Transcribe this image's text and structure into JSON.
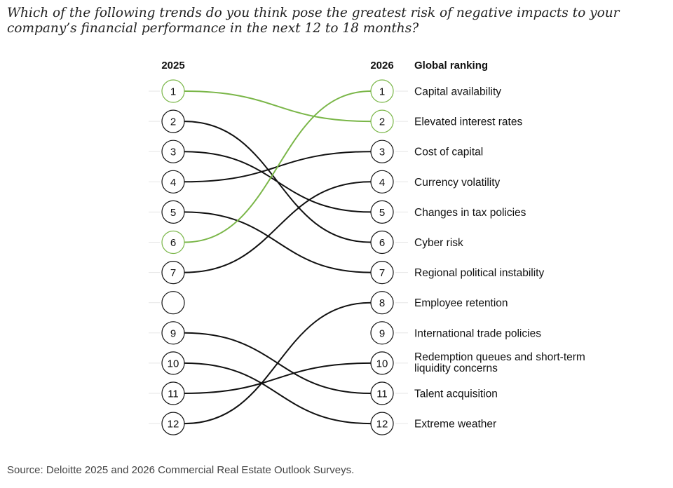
{
  "question": "Which of the following trends do you think pose the greatest risk of negative impacts to your company’s financial performance in the next 12 to 18 months?",
  "source": "Source: Deloitte 2025 and 2026 Commercial Real Estate Outlook Surveys.",
  "colors": {
    "highlight": "#7ab648",
    "line": "#111111",
    "grid": "#e6e6e6"
  },
  "chart_data": {
    "type": "slope",
    "left_header": "2025",
    "right_header": "2026",
    "label_header": "Global ranking",
    "left_ranks": [
      "1",
      "2",
      "3",
      "4",
      "5",
      "6",
      "7",
      "",
      "9",
      "10",
      "11",
      "12"
    ],
    "right_ranks": [
      "1",
      "2",
      "3",
      "4",
      "5",
      "6",
      "7",
      "8",
      "9",
      "10",
      "11",
      "12"
    ],
    "items": [
      {
        "label": "Capital availability",
        "rank_2026": 1,
        "rank_2025": 6,
        "highlight": true
      },
      {
        "label": "Elevated interest rates",
        "rank_2026": 2,
        "rank_2025": 1,
        "highlight": true
      },
      {
        "label": "Cost of capital",
        "rank_2026": 3,
        "rank_2025": 4
      },
      {
        "label": "Currency volatility",
        "rank_2026": 4,
        "rank_2025": 7
      },
      {
        "label": "Changes in tax policies",
        "rank_2026": 5,
        "rank_2025": 3
      },
      {
        "label": "Cyber risk",
        "rank_2026": 6,
        "rank_2025": 2
      },
      {
        "label": "Regional political instability",
        "rank_2026": 7,
        "rank_2025": 5
      },
      {
        "label": "Employee retention",
        "rank_2026": 8,
        "rank_2025": 12
      },
      {
        "label": "International trade policies",
        "rank_2026": 9,
        "rank_2025": null
      },
      {
        "label": "Redemption queues and short-term liquidity concerns",
        "rank_2026": 10,
        "rank_2025": 11
      },
      {
        "label": "Talent acquisition",
        "rank_2026": 11,
        "rank_2025": 9
      },
      {
        "label": "Extreme weather",
        "rank_2026": 12,
        "rank_2025": 10
      }
    ]
  }
}
